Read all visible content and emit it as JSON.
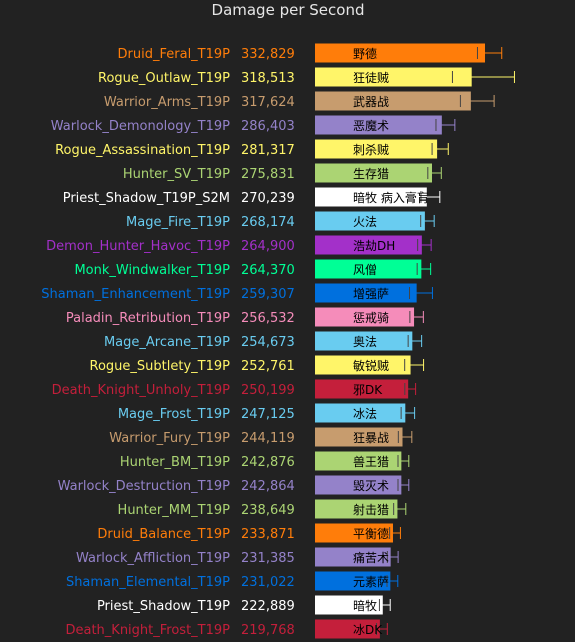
{
  "chart_data": {
    "type": "bar",
    "orientation": "horizontal",
    "title": "Damage per Second",
    "xlabel": "",
    "ylabel": "",
    "grid": false,
    "legend": "none",
    "xlim": [
      0,
      400000
    ],
    "rows": [
      {
        "spec": "Druid_Feral_T19P",
        "dps": "332,829",
        "value": 332829,
        "label": "野德",
        "color": "#ff7d0a",
        "err": 18000
      },
      {
        "spec": "Rogue_Outlaw_T19P",
        "dps": "318,513",
        "value": 318513,
        "label": "狂徒贼",
        "color": "#fff569",
        "err": 46000
      },
      {
        "spec": "Warrior_Arms_T19P",
        "dps": "317,624",
        "value": 317624,
        "label": "武器战",
        "color": "#c79c6e",
        "err": 25000
      },
      {
        "spec": "Warlock_Demonology_T19P",
        "dps": "286,403",
        "value": 286403,
        "label": "恶魔术",
        "color": "#9482c9",
        "err": 14000
      },
      {
        "spec": "Rogue_Assassination_T19P",
        "dps": "281,317",
        "value": 281317,
        "label": "刺杀贼",
        "color": "#fff569",
        "err": 12000
      },
      {
        "spec": "Hunter_SV_T19P",
        "dps": "275,831",
        "value": 275831,
        "label": "生存猎",
        "color": "#abd473",
        "err": 10000
      },
      {
        "spec": "Priest_Shadow_T19P_S2M",
        "dps": "270,239",
        "value": 270239,
        "label": "暗牧 病入膏肓",
        "color": "#ffffff",
        "err": 14000
      },
      {
        "spec": "Mage_Fire_T19P",
        "dps": "268,174",
        "value": 268174,
        "label": "火法",
        "color": "#69ccf0",
        "err": 10000
      },
      {
        "spec": "Demon_Hunter_Havoc_T19P",
        "dps": "264,900",
        "value": 264900,
        "label": "浩劫DH",
        "color": "#a330c9",
        "err": 10000
      },
      {
        "spec": "Monk_Windwalker_T19P",
        "dps": "264,370",
        "value": 264370,
        "label": "风僧",
        "color": "#00ff96",
        "err": 10000
      },
      {
        "spec": "Shaman_Enhancement_T19P",
        "dps": "259,307",
        "value": 259307,
        "label": "增强萨",
        "color": "#0070de",
        "err": 17000
      },
      {
        "spec": "Paladin_Retribution_T19P",
        "dps": "256,532",
        "value": 256532,
        "label": "惩戒骑",
        "color": "#f58cba",
        "err": 10000
      },
      {
        "spec": "Mage_Arcane_T19P",
        "dps": "254,673",
        "value": 254673,
        "label": "奥法",
        "color": "#69ccf0",
        "err": 10000
      },
      {
        "spec": "Rogue_Subtlety_T19P",
        "dps": "252,761",
        "value": 252761,
        "label": "敏锐贼",
        "color": "#fff569",
        "err": 14000
      },
      {
        "spec": "Death_Knight_Unholy_T19P",
        "dps": "250,199",
        "value": 250199,
        "label": "邪DK",
        "color": "#c41f3b",
        "err": 8000
      },
      {
        "spec": "Mage_Frost_T19P",
        "dps": "247,125",
        "value": 247125,
        "label": "冰法",
        "color": "#69ccf0",
        "err": 10000
      },
      {
        "spec": "Warrior_Fury_T19P",
        "dps": "244,119",
        "value": 244119,
        "label": "狂暴战",
        "color": "#c79c6e",
        "err": 10000
      },
      {
        "spec": "Hunter_BM_T19P",
        "dps": "242,876",
        "value": 242876,
        "label": "兽王猎",
        "color": "#abd473",
        "err": 8000
      },
      {
        "spec": "Warlock_Destruction_T19P",
        "dps": "242,864",
        "value": 242864,
        "label": "毁灭术",
        "color": "#9482c9",
        "err": 8000
      },
      {
        "spec": "Hunter_MM_T19P",
        "dps": "238,649",
        "value": 238649,
        "label": "射击猎",
        "color": "#abd473",
        "err": 9000
      },
      {
        "spec": "Druid_Balance_T19P",
        "dps": "233,871",
        "value": 233871,
        "label": "平衡德",
        "color": "#ff7d0a",
        "err": 8000
      },
      {
        "spec": "Warlock_Affliction_T19P",
        "dps": "231,385",
        "value": 231385,
        "label": "痛苦术",
        "color": "#9482c9",
        "err": 8000
      },
      {
        "spec": "Shaman_Elemental_T19P",
        "dps": "231,022",
        "value": 231022,
        "label": "元素萨",
        "color": "#0070de",
        "err": 8000
      },
      {
        "spec": "Priest_Shadow_T19P",
        "dps": "222,889",
        "value": 222889,
        "label": "暗牧",
        "color": "#ffffff",
        "err": 8000
      },
      {
        "spec": "Death_Knight_Frost_T19P",
        "dps": "219,768",
        "value": 219768,
        "label": "冰DK",
        "color": "#c41f3b",
        "err": 8000
      }
    ]
  }
}
